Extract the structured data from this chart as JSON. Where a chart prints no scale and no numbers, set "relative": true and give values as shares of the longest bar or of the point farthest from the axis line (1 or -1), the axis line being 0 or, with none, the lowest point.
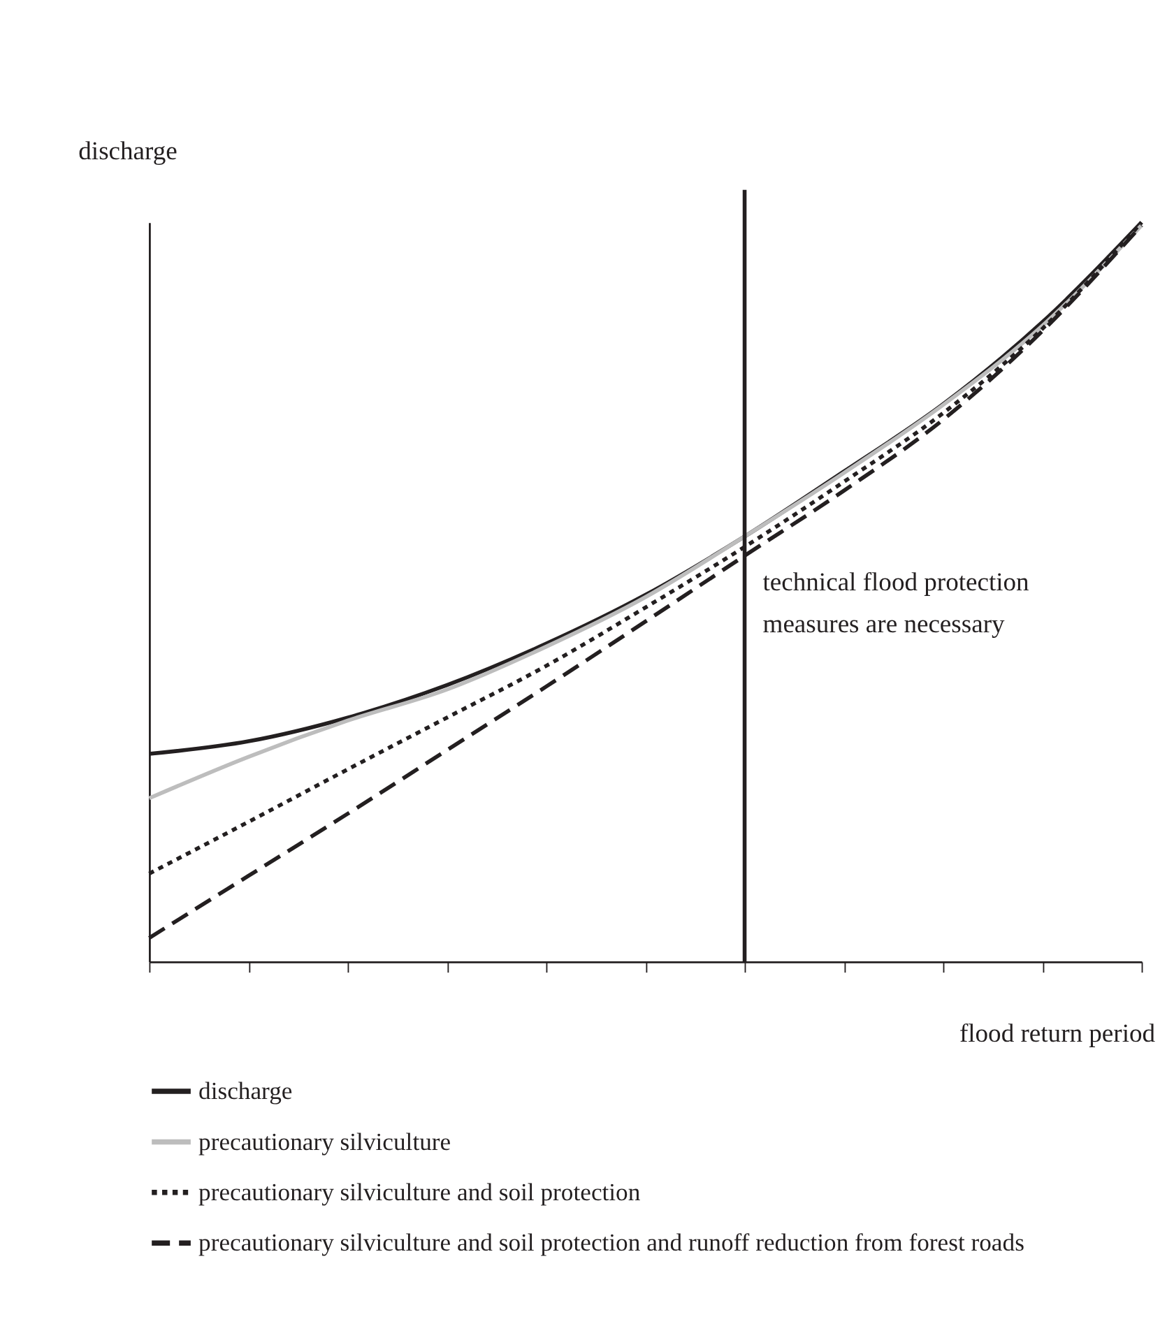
{
  "chart_data": {
    "type": "line",
    "relative": true,
    "xlabel": "flood return period",
    "ylabel": "discharge",
    "categories": [
      null,
      null,
      null,
      null,
      null,
      null,
      null,
      null,
      null,
      null,
      null
    ],
    "series": [
      {
        "name": "discharge",
        "color": "#231f20",
        "line_style": "solid",
        "values": [
          0.281,
          0.298,
          0.33,
          0.374,
          0.43,
          0.496,
          0.575,
          0.663,
          0.754,
          0.865,
          1
        ]
      },
      {
        "name": "precautionary silviculture",
        "color": "#bdbdbd",
        "line_style": "solid",
        "values": [
          0.221,
          0.277,
          0.326,
          0.368,
          0.426,
          0.493,
          0.575,
          0.661,
          0.753,
          0.86,
          0.996
        ]
      },
      {
        "name": "precautionary silviculture and soil protection",
        "color": "#231f20",
        "line_style": "dotted",
        "values": [
          0.119,
          0.189,
          0.26,
          0.33,
          0.4,
          0.479,
          0.561,
          0.649,
          0.742,
          0.856,
          1
        ]
      },
      {
        "name": "precautionary silviculture and soil protection and runoff reduction from forest roads",
        "color": "#231f20",
        "line_style": "dashed",
        "values": [
          0.032,
          0.116,
          0.2,
          0.286,
          0.372,
          0.46,
          0.549,
          0.637,
          0.733,
          0.853,
          0.996
        ]
      }
    ],
    "annotations": [
      "technical flood protection\nmeasures are necessary"
    ],
    "grid": false,
    "legend": "bottom"
  }
}
